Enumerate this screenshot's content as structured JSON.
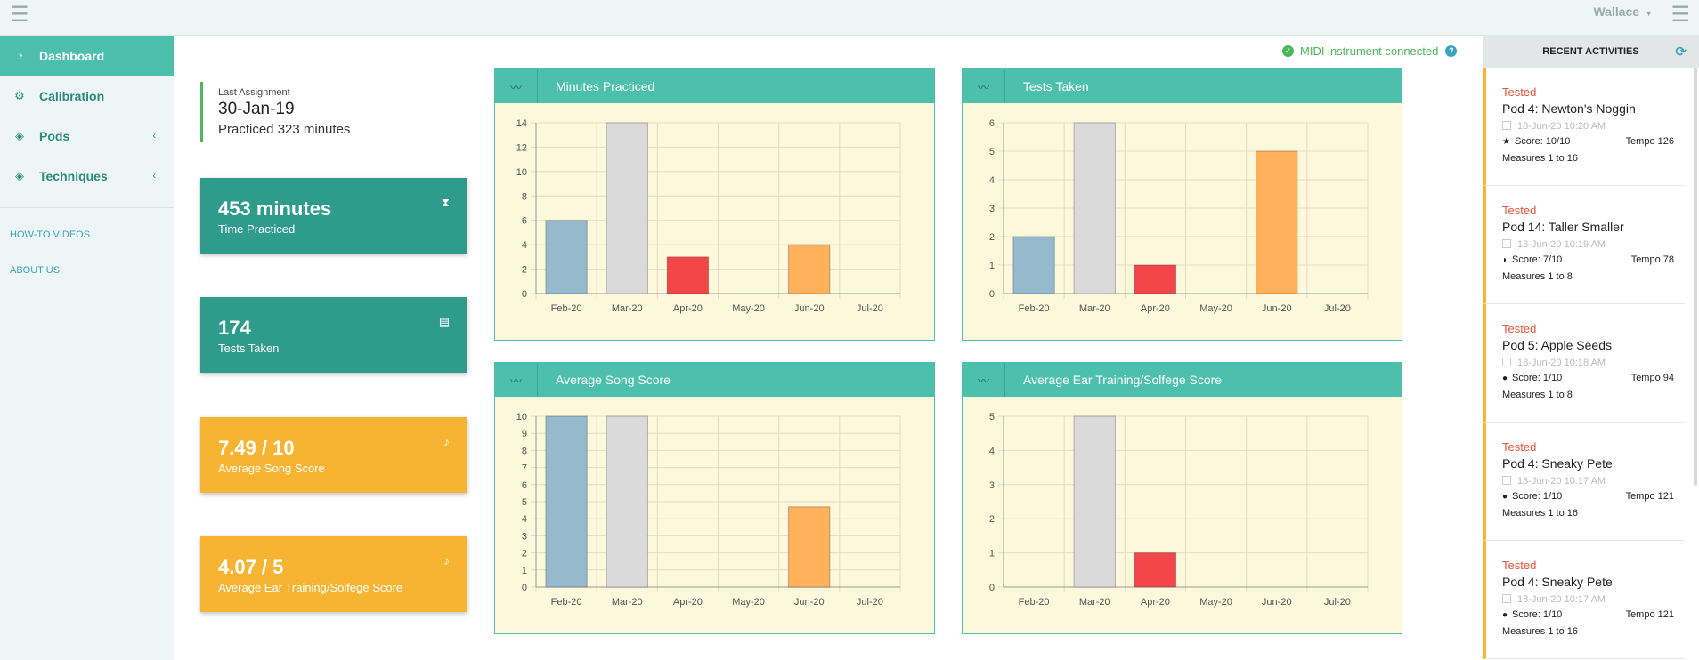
{
  "topbar": {
    "menu_icon": "hamburger-icon",
    "user": "Wallace"
  },
  "sidebar": {
    "items": [
      {
        "label": "Dashboard",
        "icon": "gauge-icon",
        "active": true
      },
      {
        "label": "Calibration",
        "icon": "gear-icon"
      },
      {
        "label": "Pods",
        "icon": "tags-icon"
      },
      {
        "label": "Techniques",
        "icon": "tags-icon"
      }
    ],
    "links": [
      "HOW-TO VIDEOS",
      "ABOUT US"
    ]
  },
  "midi_status": "MIDI instrument connected",
  "last_assignment": {
    "label": "Last Assignment",
    "date": "30-Jan-19",
    "practiced": "Practiced 323 minutes"
  },
  "stats": [
    {
      "value": "453 minutes",
      "label": "Time Practiced",
      "icon": "hourglass-icon",
      "color": "#2e9b8b"
    },
    {
      "value": "174",
      "label": "Tests Taken",
      "icon": "document-icon",
      "color": "#2e9b8b"
    },
    {
      "value": "7.49 / 10",
      "label": "Average Song Score",
      "icon": "music-note-icon",
      "color": "#f6b432"
    },
    {
      "value": "4.07 / 5",
      "label": "Average Ear Training/Solfege Score",
      "icon": "music-note-icon",
      "color": "#f6b432"
    }
  ],
  "chart_data": [
    {
      "type": "bar",
      "title": "Minutes Practiced",
      "categories": [
        "Feb-20",
        "Mar-20",
        "Apr-20",
        "May-20",
        "Jun-20",
        "Jul-20"
      ],
      "values": [
        6,
        14,
        3,
        0,
        4,
        0
      ],
      "colors": [
        "#95bace",
        "#dadada",
        "#f3464b",
        "#ffb15c",
        "#ffb15c",
        "#ffb15c"
      ],
      "ylim": [
        0,
        14
      ],
      "yticks": [
        0,
        2,
        4,
        6,
        8,
        10,
        12,
        14
      ],
      "grid": true
    },
    {
      "type": "bar",
      "title": "Tests Taken",
      "categories": [
        "Feb-20",
        "Mar-20",
        "Apr-20",
        "May-20",
        "Jun-20",
        "Jul-20"
      ],
      "values": [
        2,
        6,
        1,
        0,
        5,
        0
      ],
      "colors": [
        "#95bace",
        "#dadada",
        "#f3464b",
        "#ffb15c",
        "#ffb15c",
        "#ffb15c"
      ],
      "ylim": [
        0,
        6
      ],
      "yticks": [
        0,
        1,
        2,
        3,
        4,
        5,
        6
      ],
      "grid": true
    },
    {
      "type": "bar",
      "title": "Average Song Score",
      "categories": [
        "Feb-20",
        "Mar-20",
        "Apr-20",
        "May-20",
        "Jun-20",
        "Jul-20"
      ],
      "values": [
        10,
        10,
        0,
        0,
        4.7,
        0
      ],
      "colors": [
        "#95bace",
        "#dadada",
        "#f3464b",
        "#ffb15c",
        "#ffb15c",
        "#ffb15c"
      ],
      "ylim": [
        0,
        10
      ],
      "yticks": [
        0,
        1,
        2,
        3,
        4,
        5,
        6,
        7,
        8,
        9,
        10
      ],
      "grid": true
    },
    {
      "type": "bar",
      "title": "Average Ear Training/Solfege Score",
      "categories": [
        "Feb-20",
        "Mar-20",
        "Apr-20",
        "May-20",
        "Jun-20",
        "Jul-20"
      ],
      "values": [
        0,
        5,
        1,
        0,
        0,
        0
      ],
      "colors": [
        "#95bace",
        "#dadada",
        "#f3464b",
        "#ffb15c",
        "#ffb15c",
        "#ffb15c"
      ],
      "ylim": [
        0,
        5
      ],
      "yticks": [
        0,
        1,
        2,
        3,
        4,
        5
      ],
      "grid": true
    }
  ],
  "recent": {
    "title": "RECENT ACTIVITIES",
    "items": [
      {
        "status": "Tested",
        "title": "Pod 4: Newton's Noggin",
        "time": "18-Jun-20 10:20 AM",
        "score": "Score: 10/10",
        "score_icon": "★",
        "tempo": "Tempo 126",
        "measures": "Measures 1 to 16"
      },
      {
        "status": "Tested",
        "title": "Pod 14: Taller Smaller",
        "time": "18-Jun-20 10:19 AM",
        "score": "Score: 7/10",
        "score_icon": "◗",
        "tempo": "Tempo 78",
        "measures": "Measures 1 to 8"
      },
      {
        "status": "Tested",
        "title": "Pod 5: Apple Seeds",
        "time": "18-Jun-20 10:18 AM",
        "score": "Score: 1/10",
        "score_icon": "●",
        "tempo": "Tempo 94",
        "measures": "Measures 1 to 8"
      },
      {
        "status": "Tested",
        "title": "Pod 4: Sneaky Pete",
        "time": "18-Jun-20 10:17 AM",
        "score": "Score: 1/10",
        "score_icon": "●",
        "tempo": "Tempo 121",
        "measures": "Measures 1 to 16"
      },
      {
        "status": "Tested",
        "title": "Pod 4: Sneaky Pete",
        "time": "18-Jun-20 10:17 AM",
        "score": "Score: 1/10",
        "score_icon": "●",
        "tempo": "Tempo 121",
        "measures": "Measures 1 to 16"
      }
    ]
  }
}
